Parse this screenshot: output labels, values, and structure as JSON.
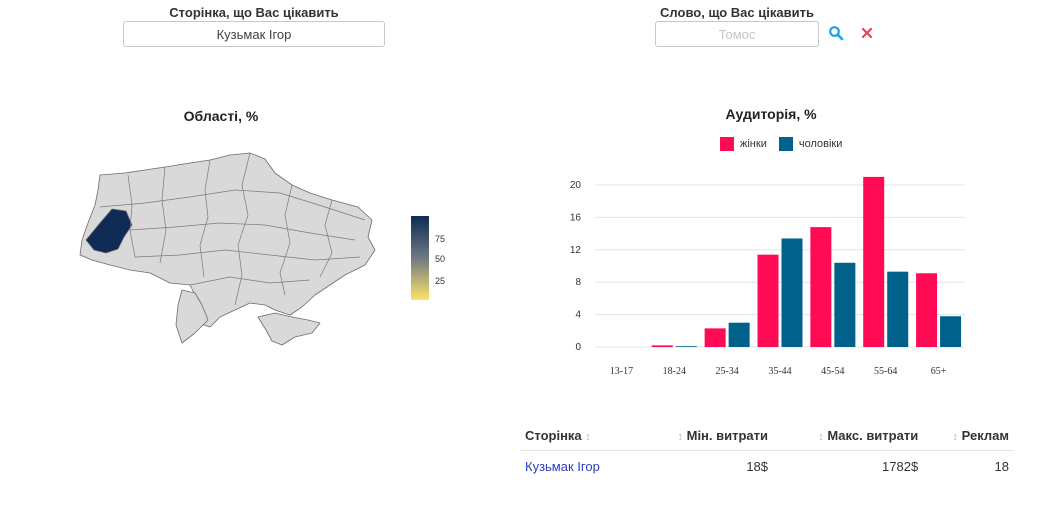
{
  "page_field": {
    "label": "Сторінка, що Вас цікавить",
    "value": "Кузьмак Ігор"
  },
  "word_field": {
    "label": "Слово, що Вас цікавить",
    "placeholder": "Томос"
  },
  "icons": {
    "search": "search-icon",
    "clear": "close-icon",
    "sort": "sort-icon"
  },
  "map": {
    "title": "Області, %",
    "scale_ticks": [
      "75",
      "50",
      "25"
    ],
    "colors": {
      "region": "#d9d9d9",
      "highlight": "#0f2a55",
      "scale_top": "#0f2a55",
      "scale_mid": "#6e7a82",
      "scale_bottom": "#fce36a"
    }
  },
  "audience": {
    "title": "Аудиторія, %",
    "legend": [
      {
        "label": "жінки",
        "color": "#ff0a54"
      },
      {
        "label": "чоловіки",
        "color": "#00618a"
      }
    ]
  },
  "chart_data": {
    "type": "bar",
    "title": "Аудиторія, %",
    "categories": [
      "13-17",
      "18-24",
      "25-34",
      "35-44",
      "45-54",
      "55-64",
      "65+"
    ],
    "series": [
      {
        "name": "жінки",
        "values": [
          0,
          0.2,
          2.3,
          11.4,
          14.8,
          21,
          9.1
        ]
      },
      {
        "name": "чоловіки",
        "values": [
          0,
          0.1,
          3.0,
          13.4,
          10.4,
          9.3,
          3.8
        ]
      }
    ],
    "ylim": [
      0,
      20
    ],
    "yticks": [
      "0",
      "4",
      "8",
      "12",
      "16",
      "20"
    ],
    "grid": true,
    "legend_position": "top"
  },
  "table": {
    "headers": [
      "Сторінка",
      "Мін. витрати",
      "Макс. витрати",
      "Реклам"
    ],
    "rows": [
      {
        "page": "Кузьмак Ігор",
        "min": "18$",
        "max": "1782$",
        "ads": "18"
      }
    ]
  }
}
